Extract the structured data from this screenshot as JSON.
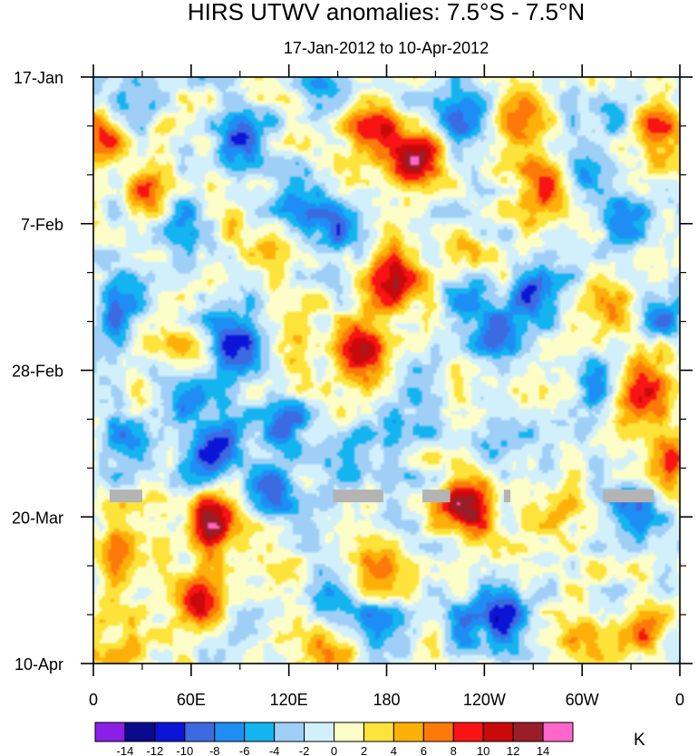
{
  "chart_data": {
    "type": "heatmap",
    "title": "HIRS UTWV anomalies: 7.5°S - 7.5°N",
    "subtitle": "17-Jan-2012 to 10-Apr-2012",
    "xlabel": "",
    "ylabel": "",
    "x_ticks": [
      "0",
      "60E",
      "120E",
      "180",
      "120W",
      "60W",
      "0"
    ],
    "x_range": [
      0,
      360
    ],
    "y_ticks": [
      "17-Jan",
      "7-Feb",
      "28-Feb",
      "20-Mar",
      "10-Apr"
    ],
    "y_range_days": [
      0,
      84
    ],
    "colorbar": {
      "unit": "K",
      "labels": [
        "-14",
        "-12",
        "-10",
        "-8",
        "-6",
        "-4",
        "-2",
        "0",
        "2",
        "4",
        "6",
        "8",
        "10",
        "12",
        "14"
      ],
      "colors": [
        "#8b1fe8",
        "#0a0a8c",
        "#0c14d6",
        "#3c6ae0",
        "#1e8ef5",
        "#14b4f0",
        "#9fcff7",
        "#d2f0fc",
        "#fdfdc8",
        "#fde33a",
        "#fdb00a",
        "#fd7a0a",
        "#f81414",
        "#c80a0a",
        "#9a1e28",
        "#ff66cc"
      ]
    },
    "features": {
      "anomaly_centers": [
        {
          "lon": 197,
          "day": 12,
          "value": 15
        },
        {
          "lon": 169,
          "day": 8,
          "value": 11
        },
        {
          "lon": 185,
          "day": 29,
          "value": 11
        },
        {
          "lon": 164,
          "day": 39,
          "value": 10
        },
        {
          "lon": 229,
          "day": 62,
          "value": 12
        },
        {
          "lon": 74,
          "day": 64,
          "value": 14
        },
        {
          "lon": 67,
          "day": 75,
          "value": 11
        },
        {
          "lon": 279,
          "day": 16,
          "value": 10
        },
        {
          "lon": 265,
          "day": 6,
          "value": 8
        },
        {
          "lon": 35,
          "day": 17,
          "value": 10
        },
        {
          "lon": 345,
          "day": 8,
          "value": 9
        },
        {
          "lon": 5,
          "day": 9,
          "value": 7
        },
        {
          "lon": 360,
          "day": 55,
          "value": 8
        },
        {
          "lon": 340,
          "day": 44,
          "value": 7
        },
        {
          "lon": 325,
          "day": 48,
          "value": 6
        },
        {
          "lon": 125,
          "day": 37,
          "value": 6
        },
        {
          "lon": 230,
          "day": 26,
          "value": 6
        },
        {
          "lon": 320,
          "day": 34,
          "value": 6
        },
        {
          "lon": 110,
          "day": 22,
          "value": 6
        },
        {
          "lon": 285,
          "day": 62,
          "value": 5
        },
        {
          "lon": 170,
          "day": 70,
          "value": 6
        },
        {
          "lon": 20,
          "day": 68,
          "value": 6
        },
        {
          "lon": 60,
          "day": 40,
          "value": 5
        },
        {
          "lon": 340,
          "day": 79,
          "value": 6
        },
        {
          "lon": 300,
          "day": 80,
          "value": 5
        },
        {
          "lon": 145,
          "day": 82,
          "value": 5
        },
        {
          "lon": 20,
          "day": 82,
          "value": 6
        },
        {
          "lon": 85,
          "day": 38,
          "value": -13
        },
        {
          "lon": 72,
          "day": 54,
          "value": -12
        },
        {
          "lon": 90,
          "day": 8,
          "value": -11
        },
        {
          "lon": 60,
          "day": 45,
          "value": -9
        },
        {
          "lon": 110,
          "day": 60,
          "value": -8
        },
        {
          "lon": 270,
          "day": 31,
          "value": -10
        },
        {
          "lon": 245,
          "day": 36,
          "value": -9
        },
        {
          "lon": 225,
          "day": 30,
          "value": -8
        },
        {
          "lon": 118,
          "day": 18,
          "value": -7
        },
        {
          "lon": 145,
          "day": 22,
          "value": -8
        },
        {
          "lon": 120,
          "day": 50,
          "value": -8
        },
        {
          "lon": 15,
          "day": 33,
          "value": -8
        },
        {
          "lon": 300,
          "day": 14,
          "value": -7
        },
        {
          "lon": 50,
          "day": 20,
          "value": -7
        },
        {
          "lon": 255,
          "day": 77,
          "value": -9
        },
        {
          "lon": 145,
          "day": 75,
          "value": -8
        },
        {
          "lon": 180,
          "day": 79,
          "value": -7
        },
        {
          "lon": 230,
          "day": 80,
          "value": -7
        },
        {
          "lon": 310,
          "day": 45,
          "value": -6
        },
        {
          "lon": 350,
          "day": 34,
          "value": -7
        },
        {
          "lon": 330,
          "day": 62,
          "value": -6
        },
        {
          "lon": 325,
          "day": 20,
          "value": -6
        },
        {
          "lon": 20,
          "day": 52,
          "value": -6
        },
        {
          "lon": 250,
          "day": 52,
          "value": -6
        },
        {
          "lon": 200,
          "day": 50,
          "value": -6
        },
        {
          "lon": 160,
          "day": 55,
          "value": -6
        },
        {
          "lon": 30,
          "day": 2,
          "value": -6
        },
        {
          "lon": 140,
          "day": 3,
          "value": -6
        },
        {
          "lon": 225,
          "day": 6,
          "value": -7
        },
        {
          "lon": 320,
          "day": 6,
          "value": -6
        }
      ],
      "missing_data": [
        {
          "lon_start": 10,
          "lon_end": 30,
          "day": 60
        },
        {
          "lon_start": 147,
          "lon_end": 178,
          "day": 60
        },
        {
          "lon_start": 202,
          "lon_end": 219,
          "day": 60
        },
        {
          "lon_start": 252,
          "lon_end": 256,
          "day": 60
        },
        {
          "lon_start": 313,
          "lon_end": 344,
          "day": 60
        }
      ]
    }
  }
}
